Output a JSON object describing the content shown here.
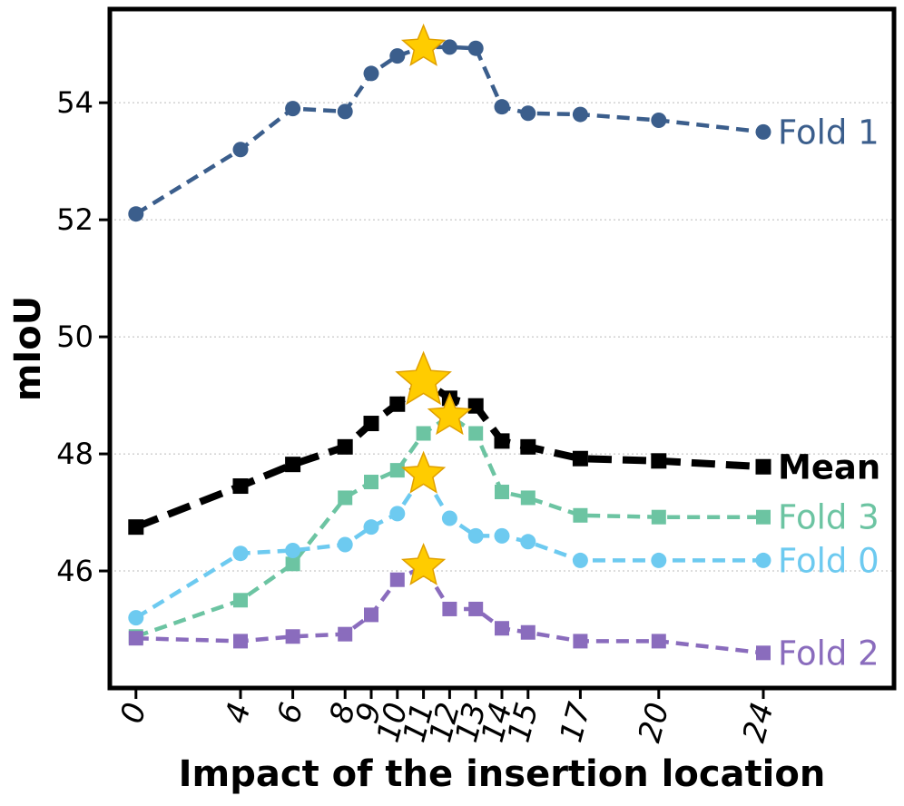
{
  "chart_data": {
    "type": "line",
    "title": "",
    "xlabel": "Impact of the insertion location",
    "ylabel": "mIoU",
    "x": [
      0,
      4,
      6,
      8,
      9,
      10,
      11,
      12,
      13,
      14,
      15,
      17,
      20,
      24
    ],
    "xticks": [
      "0",
      "4",
      "6",
      "8",
      "9",
      "10",
      "11",
      "12",
      "13",
      "14",
      "15",
      "17",
      "20",
      "24"
    ],
    "yticks": [
      "46",
      "48",
      "50",
      "52",
      "54"
    ],
    "ylim": [
      44.0,
      55.6
    ],
    "xlim": [
      -1,
      29
    ],
    "grid": "horizontal dotted",
    "series": [
      {
        "name": "Fold 1",
        "color": "#3b5e8c",
        "marker": "circle",
        "best_x": 11,
        "values": [
          52.1,
          53.2,
          53.9,
          53.85,
          54.5,
          54.8,
          54.95,
          54.95,
          54.93,
          53.93,
          53.82,
          53.8,
          53.7,
          53.5
        ]
      },
      {
        "name": "Mean",
        "color": "#000000",
        "marker": "square",
        "bold": true,
        "best_x": 11,
        "values": [
          46.75,
          47.45,
          47.82,
          48.12,
          48.52,
          48.85,
          49.25,
          48.95,
          48.82,
          48.22,
          48.12,
          47.92,
          47.88,
          47.78
        ]
      },
      {
        "name": "Fold 3",
        "color": "#6cc4a2",
        "marker": "square",
        "best_x": 12,
        "values": [
          44.88,
          45.5,
          46.12,
          47.25,
          47.52,
          47.72,
          48.35,
          48.65,
          48.35,
          47.35,
          47.25,
          46.95,
          46.92,
          46.92
        ]
      },
      {
        "name": "Fold 0",
        "color": "#6dcaf0",
        "marker": "circle",
        "best_x": 11,
        "values": [
          45.2,
          46.3,
          46.35,
          46.45,
          46.75,
          46.98,
          47.65,
          46.9,
          46.6,
          46.6,
          46.5,
          46.18,
          46.18,
          46.18
        ]
      },
      {
        "name": "Fold 2",
        "color": "#8a6cbd",
        "marker": "square",
        "best_x": 11,
        "values": [
          44.85,
          44.8,
          44.88,
          44.92,
          45.25,
          45.85,
          46.08,
          45.35,
          45.35,
          45.02,
          44.95,
          44.8,
          44.8,
          44.6
        ]
      }
    ]
  }
}
